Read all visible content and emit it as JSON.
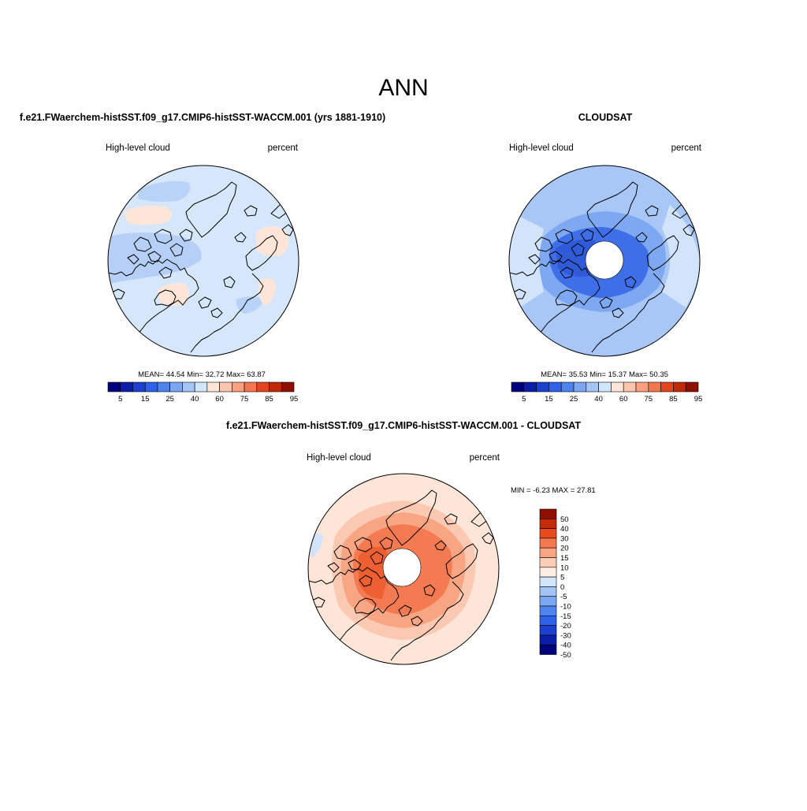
{
  "page": {
    "title": "ANN",
    "top_left_title": "f.e21.FWaerchem-histSST.f09_g17.CMIP6-histSST-WACCM.001 (yrs 1881-1910)",
    "top_right_title": "CLOUDSAT",
    "bottom_title": "f.e21.FWaerchem-histSST.f09_g17.CMIP6-histSST-WACCM.001 - CLOUDSAT"
  },
  "panels": {
    "model": {
      "variable": "High-level cloud",
      "units": "percent",
      "stats": "MEAN=  44.54  Min=  32.72  Max=  63.87"
    },
    "obs": {
      "variable": "High-level cloud",
      "units": "percent",
      "stats": "MEAN=  35.53  Min=  15.37  Max=  50.35"
    },
    "diff": {
      "variable": "High-level cloud",
      "units": "percent",
      "stats": "MIN =  -6.23 MAX =  27.81"
    }
  },
  "colorbars": {
    "abs": {
      "colors": [
        "#00007f",
        "#0b1ea7",
        "#1b3fcf",
        "#2f62e8",
        "#4f83ee",
        "#7aa6f2",
        "#a4c4f6",
        "#d2e6fb",
        "#fde6d8",
        "#fbc6ad",
        "#f8a180",
        "#f47650",
        "#e3461f",
        "#c02a08",
        "#8e1002"
      ],
      "labels": [
        "5",
        "15",
        "25",
        "40",
        "60",
        "75",
        "85",
        "95"
      ]
    },
    "diff": {
      "colors": [
        "#00007f",
        "#0b1ea7",
        "#1b3fcf",
        "#2f62e8",
        "#4f83ee",
        "#7aa6f2",
        "#a4c4f6",
        "#d2e6fb",
        "#fdeee4",
        "#fbcfb6",
        "#f8a682",
        "#f4794f",
        "#e84a1e",
        "#c42d09",
        "#8e1002"
      ],
      "labels": [
        "50",
        "40",
        "30",
        "20",
        "15",
        "10",
        "5",
        "0",
        "-5",
        "-10",
        "-15",
        "-20",
        "-30",
        "-40",
        "-50"
      ]
    }
  }
}
